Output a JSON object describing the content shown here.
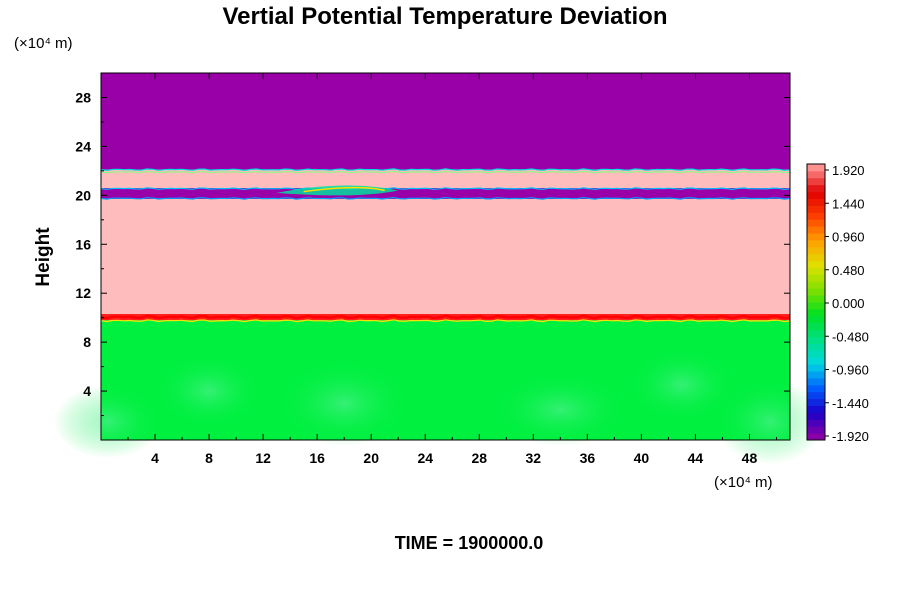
{
  "chart_data": {
    "type": "heatmap",
    "title": "Vertial Potential Temperature Deviation",
    "xlabel": "",
    "ylabel": "Height",
    "x_unit": "(×10⁴ m)",
    "y_unit": "(×10⁴ m)",
    "x_ticks": [
      4,
      8,
      12,
      16,
      20,
      24,
      28,
      32,
      36,
      40,
      44,
      48
    ],
    "y_ticks": [
      4,
      8,
      12,
      16,
      20,
      24,
      28
    ],
    "xlim": [
      0,
      51
    ],
    "ylim": [
      0,
      30
    ],
    "colorbar": {
      "ticks": [
        "1.920",
        "1.440",
        "0.960",
        "0.480",
        "0.000",
        "-0.480",
        "-0.960",
        "-1.440",
        "-1.920"
      ],
      "range": [
        -1.92,
        1.92
      ],
      "colors": [
        "#8a00a8",
        "#1a00c8",
        "#0060ff",
        "#00d8e0",
        "#00e080",
        "#00e020",
        "#80e000",
        "#e0e000",
        "#ffa000",
        "#ff4000",
        "#e00000",
        "#ff9090"
      ]
    },
    "bands": [
      {
        "y0": 0,
        "y1": 9.8,
        "value": 0.2,
        "color": "#00f040"
      },
      {
        "y0": 9.8,
        "y1": 10.3,
        "value": 1.4,
        "color": "#ff2020"
      },
      {
        "y0": 10.3,
        "y1": 19.7,
        "value": 2.0,
        "color": "#ffbcbc"
      },
      {
        "y0": 19.7,
        "y1": 20.6,
        "value": -2.0,
        "color": "#9a00a8"
      },
      {
        "y0": 20.6,
        "y1": 22.1,
        "value": 2.0,
        "color": "#ffbcbc"
      },
      {
        "y0": 22.1,
        "y1": 30,
        "value": -2.0,
        "color": "#9a00a8"
      }
    ]
  },
  "footer": {
    "time_label": "TIME = 1900000.0"
  }
}
